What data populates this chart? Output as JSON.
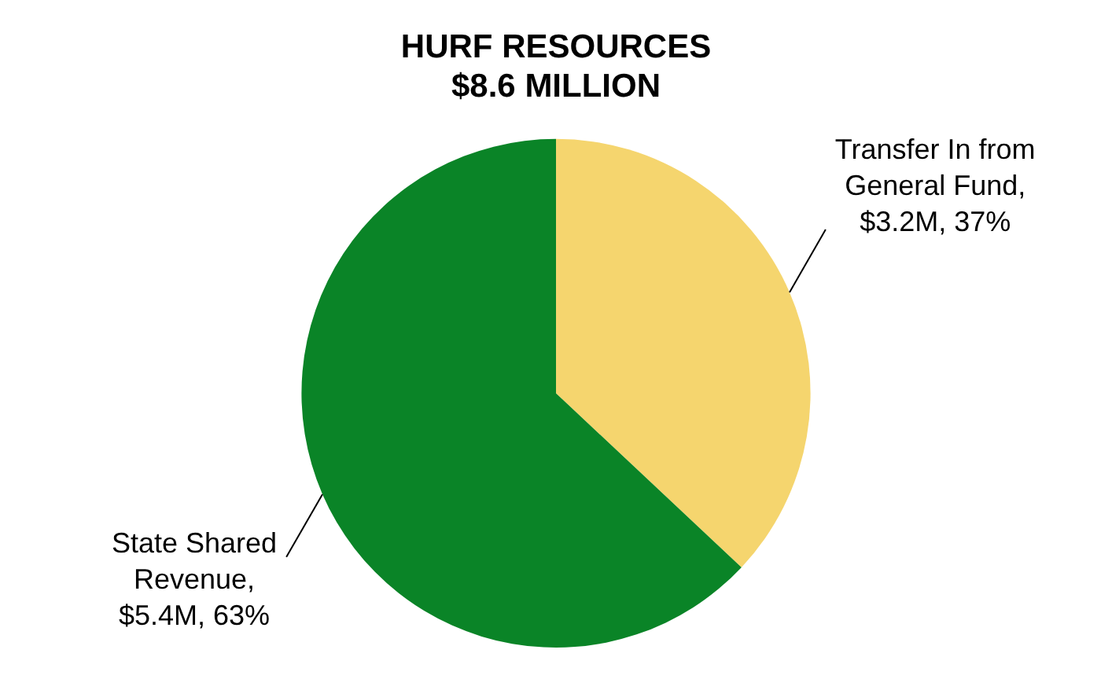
{
  "chart_data": {
    "type": "pie",
    "title": "HURF RESOURCES\n$8.6 MILLION",
    "categories": [
      "Transfer In from General Fund",
      "State Shared Revenue"
    ],
    "values": [
      37,
      63
    ],
    "value_labels": [
      ", $3.2M, 37%",
      ", $5.4M, 63%"
    ],
    "colors": [
      "#f5d56e",
      "#0a8427"
    ],
    "legend": false
  }
}
